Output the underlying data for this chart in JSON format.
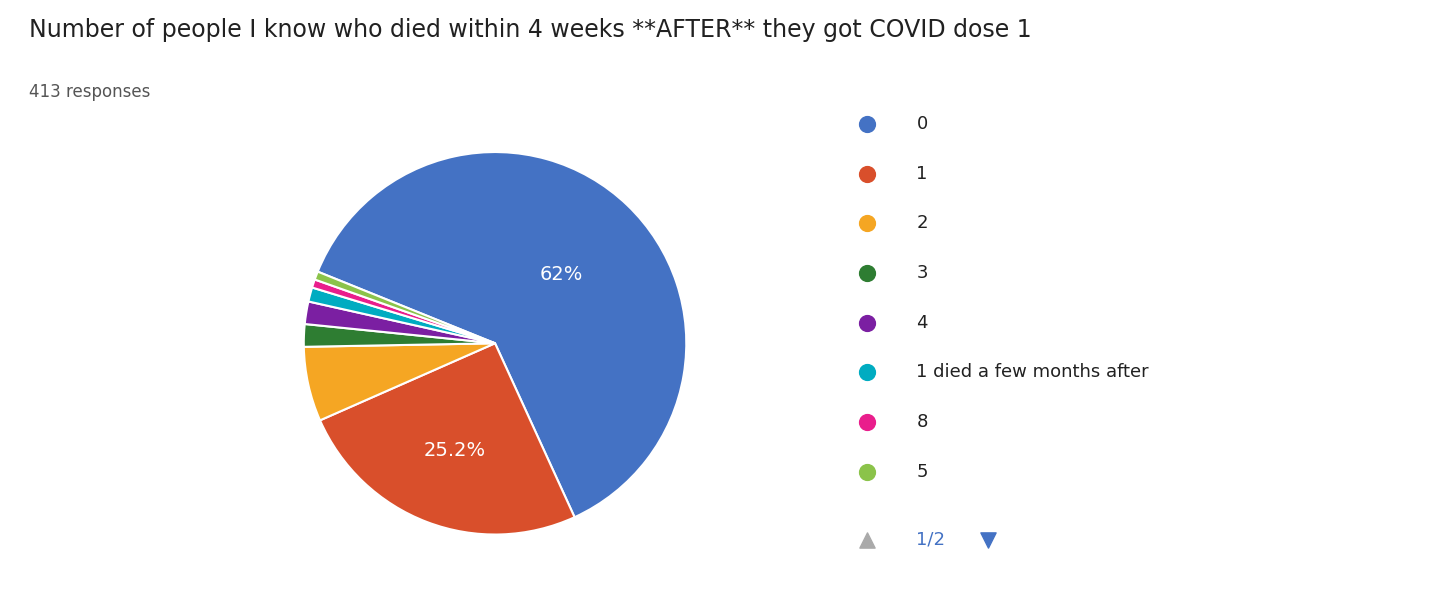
{
  "title": "Number of people I know who died within 4 weeks **AFTER** they got COVID dose 1",
  "subtitle": "413 responses",
  "labels": [
    "0",
    "1",
    "2",
    "3",
    "4",
    "1 died a few months after",
    "8",
    "5"
  ],
  "values": [
    62.0,
    25.2,
    6.3,
    1.9,
    1.9,
    1.2,
    0.7,
    0.7
  ],
  "colors": [
    "#4472c4",
    "#d94f2b",
    "#f5a623",
    "#2e7d32",
    "#7b1fa2",
    "#00acc1",
    "#e91e8c",
    "#8bc34a"
  ],
  "pct_labels": [
    "62%",
    "25.2%",
    "",
    "",
    "",
    "",
    "",
    ""
  ],
  "background_color": "#ffffff",
  "title_fontsize": 17,
  "subtitle_fontsize": 12,
  "startangle": 158
}
